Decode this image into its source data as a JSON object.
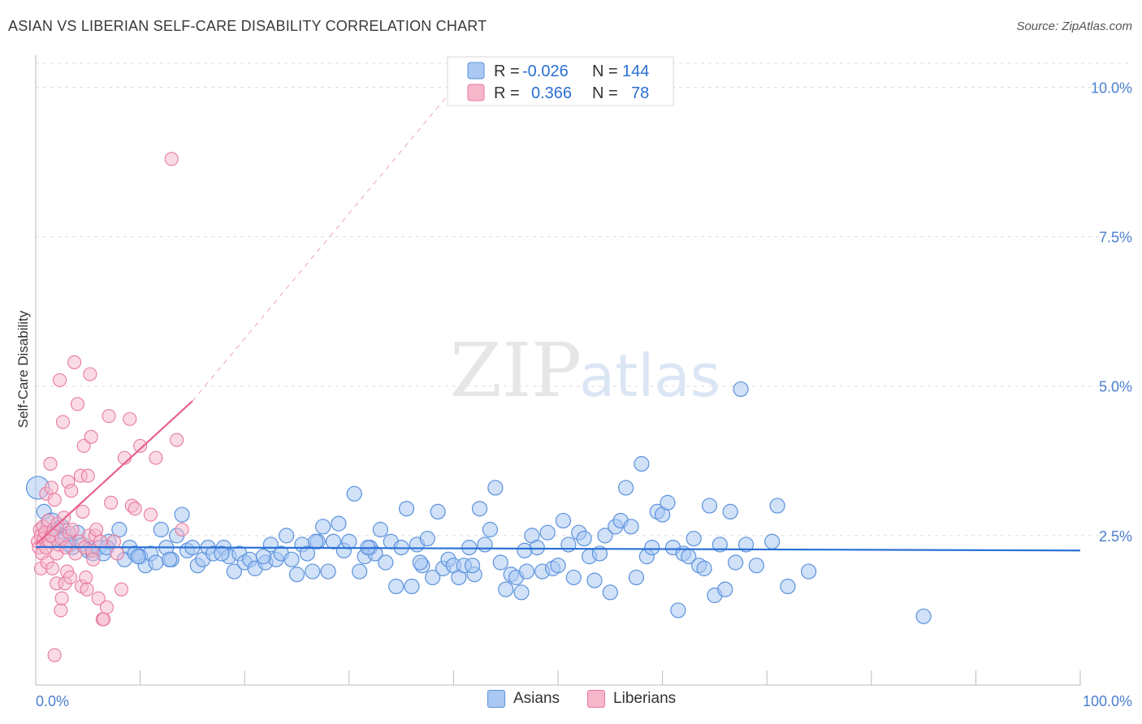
{
  "title": "ASIAN VS LIBERIAN SELF-CARE DISABILITY CORRELATION CHART",
  "source": "Source: ZipAtlas.com",
  "watermark": {
    "zip": "ZIP",
    "atlas": "atlas"
  },
  "colors": {
    "blue_fill": "#a9c8f3",
    "blue_stroke": "#5b92dd",
    "blue_line": "#2a6fd6",
    "pink_fill": "#f6b7cb",
    "pink_stroke": "#e8799e",
    "pink_line": "#e8608e",
    "axis_label": "#4a7fd0",
    "grid": "#dcdcdc"
  },
  "legend_box": {
    "rows": [
      {
        "r_label": "R =",
        "r_value": "-0.026",
        "n_label": "N =",
        "n_value": "144"
      },
      {
        "r_label": "R =",
        "r_value": "0.366",
        "n_label": "N =",
        "n_value": "78"
      }
    ]
  },
  "legend_bottom": {
    "asians": "Asians",
    "liberians": "Liberians"
  },
  "chart_data": {
    "type": "scatter",
    "title": "ASIAN VS LIBERIAN SELF-CARE DISABILITY CORRELATION CHART",
    "xlabel": "",
    "ylabel": "Self-Care Disability",
    "xlim": [
      0,
      100
    ],
    "ylim": [
      0,
      10.4
    ],
    "x_tick_labels": {
      "min": "0.0%",
      "max": "100.0%"
    },
    "y_ticks": [
      {
        "value": 2.5,
        "label": "2.5%"
      },
      {
        "value": 5.0,
        "label": "5.0%"
      },
      {
        "value": 7.5,
        "label": "7.5%"
      },
      {
        "value": 10.0,
        "label": "10.0%"
      }
    ],
    "grid": true,
    "legend_position": "top-center",
    "series": [
      {
        "name": "Asians",
        "R": -0.026,
        "N": 144,
        "trend": {
          "x1": 0,
          "y1": 2.31,
          "x2": 100,
          "y2": 2.25
        },
        "points": [
          [
            0.2,
            3.3
          ],
          [
            0.8,
            2.9
          ],
          [
            1.5,
            2.7
          ],
          [
            2.0,
            2.5
          ],
          [
            2.5,
            2.65
          ],
          [
            3.0,
            2.45
          ],
          [
            3.5,
            2.3
          ],
          [
            4.0,
            2.55
          ],
          [
            4.5,
            2.35
          ],
          [
            5.0,
            2.25
          ],
          [
            5.5,
            2.2
          ],
          [
            6.0,
            2.3
          ],
          [
            6.5,
            2.2
          ],
          [
            7.0,
            2.4
          ],
          [
            8.0,
            2.6
          ],
          [
            8.5,
            2.1
          ],
          [
            9.0,
            2.3
          ],
          [
            9.5,
            2.2
          ],
          [
            10.0,
            2.15
          ],
          [
            10.5,
            2.0
          ],
          [
            11.0,
            2.2
          ],
          [
            11.5,
            2.05
          ],
          [
            12.0,
            2.6
          ],
          [
            12.5,
            2.3
          ],
          [
            13.0,
            2.1
          ],
          [
            13.5,
            2.5
          ],
          [
            14.0,
            2.85
          ],
          [
            14.5,
            2.25
          ],
          [
            15.0,
            2.3
          ],
          [
            15.5,
            2.0
          ],
          [
            16.0,
            2.1
          ],
          [
            16.5,
            2.3
          ],
          [
            17.0,
            2.2
          ],
          [
            18.0,
            2.3
          ],
          [
            18.5,
            2.15
          ],
          [
            19.0,
            1.9
          ],
          [
            19.5,
            2.2
          ],
          [
            20.0,
            2.05
          ],
          [
            20.5,
            2.1
          ],
          [
            21.0,
            1.95
          ],
          [
            22.0,
            2.05
          ],
          [
            22.5,
            2.35
          ],
          [
            23.0,
            2.1
          ],
          [
            23.5,
            2.2
          ],
          [
            24.0,
            2.5
          ],
          [
            24.5,
            2.1
          ],
          [
            25.0,
            1.85
          ],
          [
            25.5,
            2.35
          ],
          [
            26.0,
            2.2
          ],
          [
            26.5,
            1.9
          ],
          [
            27.0,
            2.4
          ],
          [
            27.5,
            2.65
          ],
          [
            28.0,
            1.9
          ],
          [
            28.5,
            2.4
          ],
          [
            29.0,
            2.7
          ],
          [
            29.5,
            2.25
          ],
          [
            30.0,
            2.4
          ],
          [
            30.5,
            3.2
          ],
          [
            31.0,
            1.9
          ],
          [
            31.5,
            2.15
          ],
          [
            32.0,
            2.3
          ],
          [
            32.5,
            2.2
          ],
          [
            33.0,
            2.6
          ],
          [
            33.5,
            2.05
          ],
          [
            34.0,
            2.4
          ],
          [
            34.5,
            1.65
          ],
          [
            35.0,
            2.3
          ],
          [
            35.5,
            2.95
          ],
          [
            36.0,
            1.65
          ],
          [
            36.5,
            2.35
          ],
          [
            37.0,
            2.0
          ],
          [
            37.5,
            2.45
          ],
          [
            38.0,
            1.8
          ],
          [
            38.5,
            2.9
          ],
          [
            39.0,
            1.95
          ],
          [
            39.5,
            2.1
          ],
          [
            40.0,
            2.0
          ],
          [
            40.5,
            1.8
          ],
          [
            41.0,
            2.0
          ],
          [
            41.5,
            2.3
          ],
          [
            42.0,
            1.85
          ],
          [
            42.5,
            2.95
          ],
          [
            43.0,
            2.35
          ],
          [
            43.5,
            2.6
          ],
          [
            44.0,
            3.3
          ],
          [
            44.5,
            2.05
          ],
          [
            45.0,
            1.6
          ],
          [
            45.5,
            1.85
          ],
          [
            46.0,
            1.8
          ],
          [
            46.5,
            1.55
          ],
          [
            47.0,
            1.9
          ],
          [
            47.5,
            2.5
          ],
          [
            48.0,
            2.3
          ],
          [
            48.5,
            1.9
          ],
          [
            49.0,
            2.55
          ],
          [
            49.5,
            1.95
          ],
          [
            50.0,
            2.0
          ],
          [
            50.5,
            2.75
          ],
          [
            51.0,
            2.35
          ],
          [
            51.5,
            1.8
          ],
          [
            52.0,
            2.55
          ],
          [
            52.5,
            2.45
          ],
          [
            53.0,
            2.15
          ],
          [
            53.5,
            1.75
          ],
          [
            54.0,
            2.2
          ],
          [
            54.5,
            2.5
          ],
          [
            55.0,
            1.55
          ],
          [
            55.5,
            2.65
          ],
          [
            56.0,
            2.75
          ],
          [
            56.5,
            3.3
          ],
          [
            57.0,
            2.65
          ],
          [
            57.5,
            1.8
          ],
          [
            58.0,
            3.7
          ],
          [
            58.5,
            2.15
          ],
          [
            59.0,
            2.3
          ],
          [
            59.5,
            2.9
          ],
          [
            60.0,
            2.85
          ],
          [
            60.5,
            3.05
          ],
          [
            61.0,
            2.3
          ],
          [
            61.5,
            1.25
          ],
          [
            62.0,
            2.2
          ],
          [
            62.5,
            2.15
          ],
          [
            63.0,
            2.45
          ],
          [
            63.5,
            2.0
          ],
          [
            64.0,
            1.95
          ],
          [
            64.5,
            3.0
          ],
          [
            65.0,
            1.5
          ],
          [
            65.5,
            2.35
          ],
          [
            66.0,
            1.6
          ],
          [
            66.5,
            2.9
          ],
          [
            67.0,
            2.05
          ],
          [
            67.5,
            4.95
          ],
          [
            68.0,
            2.35
          ],
          [
            69.0,
            2.0
          ],
          [
            70.5,
            2.4
          ],
          [
            71.0,
            3.0
          ],
          [
            72.0,
            1.65
          ],
          [
            74.0,
            1.9
          ],
          [
            85.0,
            1.15
          ],
          [
            3.2,
            2.35
          ],
          [
            6.8,
            2.3
          ],
          [
            9.8,
            2.15
          ],
          [
            12.8,
            2.1
          ],
          [
            17.8,
            2.2
          ],
          [
            21.8,
            2.15
          ],
          [
            26.8,
            2.4
          ],
          [
            31.8,
            2.3
          ],
          [
            36.8,
            2.05
          ],
          [
            41.8,
            2.0
          ],
          [
            46.8,
            2.25
          ]
        ]
      },
      {
        "name": "Liberians",
        "R": 0.366,
        "N": 78,
        "trend": {
          "x1": 0,
          "y1": 2.35,
          "x2": 15,
          "y2": 4.75,
          "dashed_to": {
            "x": 42,
            "y": 10.4
          }
        },
        "points": [
          [
            0.2,
            2.4
          ],
          [
            0.3,
            2.3
          ],
          [
            0.4,
            2.6
          ],
          [
            0.5,
            2.5
          ],
          [
            0.5,
            1.95
          ],
          [
            0.6,
            2.2
          ],
          [
            0.7,
            2.65
          ],
          [
            0.8,
            2.45
          ],
          [
            0.9,
            2.55
          ],
          [
            1.0,
            2.3
          ],
          [
            1.0,
            3.2
          ],
          [
            1.1,
            2.05
          ],
          [
            1.2,
            2.75
          ],
          [
            1.3,
            2.4
          ],
          [
            1.4,
            3.7
          ],
          [
            1.5,
            2.5
          ],
          [
            1.5,
            3.3
          ],
          [
            1.6,
            1.95
          ],
          [
            1.7,
            2.6
          ],
          [
            1.8,
            3.1
          ],
          [
            1.8,
            0.5
          ],
          [
            2.0,
            2.2
          ],
          [
            2.0,
            1.7
          ],
          [
            2.1,
            2.7
          ],
          [
            2.2,
            2.35
          ],
          [
            2.3,
            5.1
          ],
          [
            2.4,
            1.25
          ],
          [
            2.5,
            2.45
          ],
          [
            2.5,
            1.45
          ],
          [
            2.6,
            4.4
          ],
          [
            2.7,
            2.8
          ],
          [
            2.8,
            1.7
          ],
          [
            2.9,
            2.3
          ],
          [
            3.0,
            1.9
          ],
          [
            3.1,
            3.4
          ],
          [
            3.2,
            2.55
          ],
          [
            3.3,
            1.8
          ],
          [
            3.4,
            3.25
          ],
          [
            3.5,
            2.6
          ],
          [
            3.7,
            5.4
          ],
          [
            3.8,
            2.2
          ],
          [
            4.0,
            4.7
          ],
          [
            4.2,
            2.4
          ],
          [
            4.3,
            3.5
          ],
          [
            4.4,
            1.65
          ],
          [
            4.5,
            2.9
          ],
          [
            4.6,
            4.0
          ],
          [
            4.7,
            2.3
          ],
          [
            4.8,
            1.8
          ],
          [
            4.9,
            1.6
          ],
          [
            5.0,
            3.5
          ],
          [
            5.1,
            2.5
          ],
          [
            5.2,
            5.2
          ],
          [
            5.3,
            4.15
          ],
          [
            5.4,
            2.25
          ],
          [
            5.5,
            2.1
          ],
          [
            5.7,
            2.5
          ],
          [
            5.8,
            2.6
          ],
          [
            6.0,
            1.45
          ],
          [
            6.2,
            2.4
          ],
          [
            6.4,
            1.1
          ],
          [
            6.5,
            1.1
          ],
          [
            6.8,
            1.3
          ],
          [
            7.0,
            4.5
          ],
          [
            7.2,
            3.05
          ],
          [
            7.5,
            2.4
          ],
          [
            8.2,
            1.6
          ],
          [
            8.5,
            3.8
          ],
          [
            9.0,
            4.45
          ],
          [
            9.2,
            3.0
          ],
          [
            9.5,
            2.95
          ],
          [
            10.0,
            4.0
          ],
          [
            7.8,
            2.2
          ],
          [
            11.0,
            2.85
          ],
          [
            11.5,
            3.8
          ],
          [
            13.5,
            4.1
          ],
          [
            14.0,
            2.6
          ],
          [
            13.0,
            8.8
          ]
        ]
      }
    ]
  }
}
